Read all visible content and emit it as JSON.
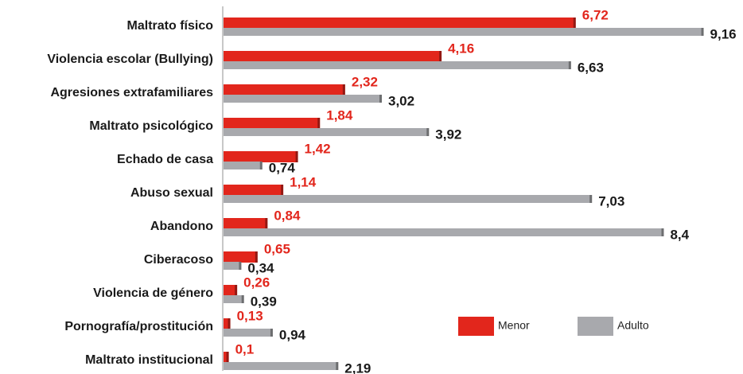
{
  "chart_data": {
    "type": "bar",
    "orientation": "horizontal",
    "categories": [
      "Maltrato físico",
      "Violencia escolar (Bullying)",
      "Agresiones extrafamiliares",
      "Maltrato psicológico",
      "Echado de casa",
      "Abuso sexual",
      "Abandono",
      "Ciberacoso",
      "Violencia de género",
      "Pornografía/prostitución",
      "Maltrato institucional"
    ],
    "series": [
      {
        "name": "Menor",
        "color": "#e2261c",
        "label_color": "#e2261c",
        "values": [
          6.72,
          4.16,
          2.32,
          1.84,
          1.42,
          1.14,
          0.84,
          0.65,
          0.26,
          0.13,
          0.1
        ],
        "value_labels": [
          "6,72",
          "4,16",
          "2,32",
          "1,84",
          "1,42",
          "1,14",
          "0,84",
          "0,65",
          "0,26",
          "0,13",
          "0,1"
        ]
      },
      {
        "name": "Adulto",
        "color": "#a8a9ad",
        "label_color": "#1a1a1a",
        "values": [
          9.16,
          6.63,
          3.02,
          3.92,
          0.74,
          7.03,
          8.4,
          0.34,
          0.39,
          0.94,
          2.19
        ],
        "value_labels": [
          "9,16",
          "6,63",
          "3,02",
          "3,92",
          "0,74",
          "7,03",
          "8,4",
          "0,34",
          "0,39",
          "0,94",
          "2,19"
        ]
      }
    ],
    "xlim": [
      0,
      9
    ]
  }
}
